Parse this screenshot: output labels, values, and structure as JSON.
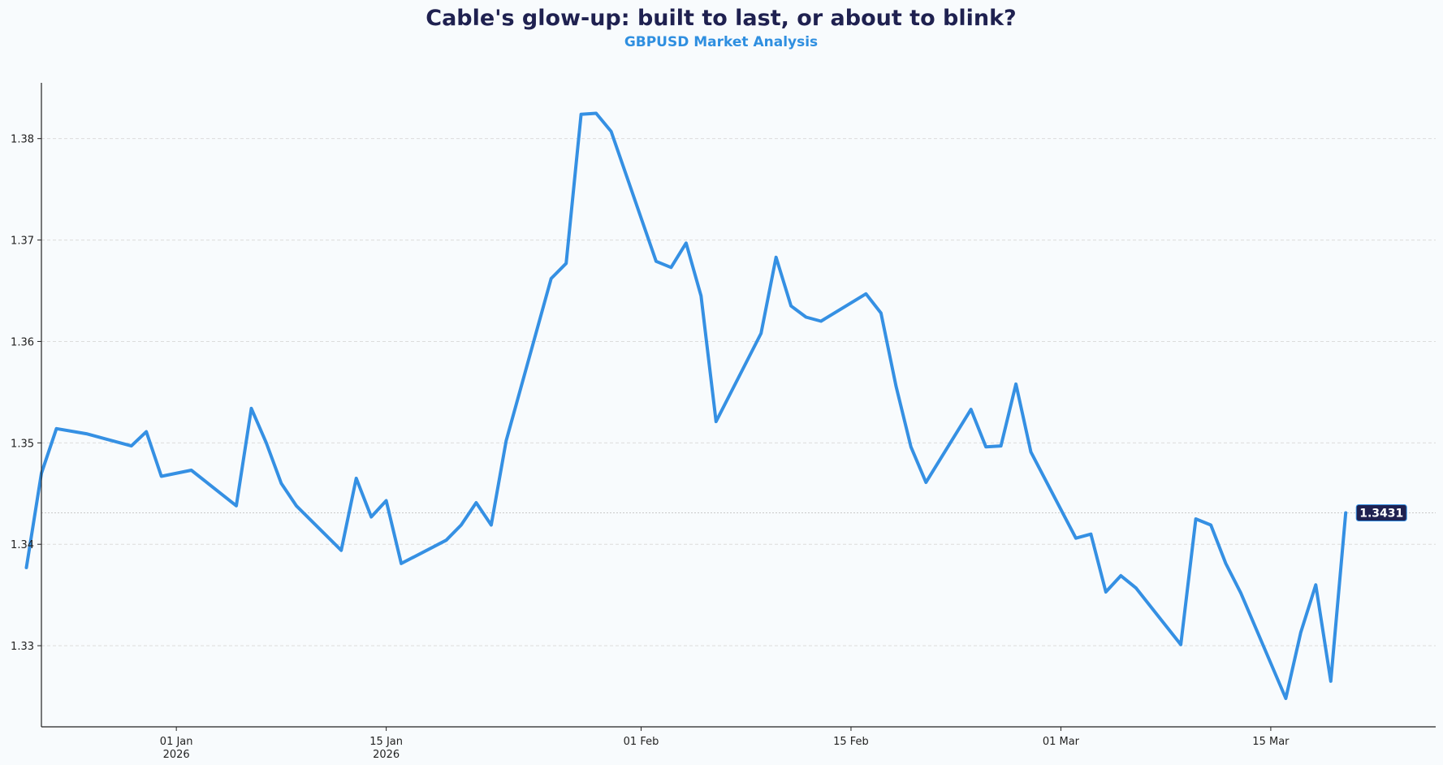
{
  "colors": {
    "background": "#f8fbfd",
    "title": "#1f2150",
    "subtitle": "#2f8fe0",
    "series": "#3590e3",
    "badge_bg": "#1f2150"
  },
  "chart_data": {
    "type": "line",
    "title": "Cable's glow-up: built to last, or about to blink?",
    "subtitle": "GBPUSD Market Analysis",
    "xlabel": "",
    "ylabel": "",
    "grid": "horizontal",
    "ylim": [
      1.322,
      1.3855
    ],
    "xlim": [
      "2025-12-23",
      "2026-03-26"
    ],
    "yticks": [
      1.33,
      1.34,
      1.35,
      1.36,
      1.37,
      1.38
    ],
    "ytick_labels": [
      "1.33",
      "1.34",
      "1.35",
      "1.36",
      "1.37",
      "1.38"
    ],
    "xticks": [
      {
        "date": "2026-01-01",
        "label": "01 Jan",
        "sublabel": "2026"
      },
      {
        "date": "2026-01-15",
        "label": "15 Jan",
        "sublabel": "2026"
      },
      {
        "date": "2026-02-01",
        "label": "01 Feb",
        "sublabel": ""
      },
      {
        "date": "2026-02-15",
        "label": "15 Feb",
        "sublabel": ""
      },
      {
        "date": "2026-03-01",
        "label": "01 Mar",
        "sublabel": ""
      },
      {
        "date": "2026-03-15",
        "label": "15 Mar",
        "sublabel": ""
      }
    ],
    "last_value_label": "1.3431",
    "series": [
      {
        "name": "",
        "x": [
          "2025-12-22",
          "2025-12-23",
          "2025-12-24",
          "2025-12-26",
          "2025-12-29",
          "2025-12-30",
          "2025-12-31",
          "2026-01-02",
          "2026-01-05",
          "2026-01-06",
          "2026-01-07",
          "2026-01-08",
          "2026-01-09",
          "2026-01-12",
          "2026-01-13",
          "2026-01-14",
          "2026-01-15",
          "2026-01-16",
          "2026-01-19",
          "2026-01-20",
          "2026-01-21",
          "2026-01-22",
          "2026-01-23",
          "2026-01-26",
          "2026-01-27",
          "2026-01-28",
          "2026-01-29",
          "2026-01-30",
          "2026-02-02",
          "2026-02-03",
          "2026-02-04",
          "2026-02-05",
          "2026-02-06",
          "2026-02-09",
          "2026-02-10",
          "2026-02-11",
          "2026-02-12",
          "2026-02-13",
          "2026-02-16",
          "2026-02-17",
          "2026-02-18",
          "2026-02-19",
          "2026-02-20",
          "2026-02-23",
          "2026-02-24",
          "2026-02-25",
          "2026-02-26",
          "2026-02-27",
          "2026-03-02",
          "2026-03-03",
          "2026-03-04",
          "2026-03-05",
          "2026-03-06",
          "2026-03-09",
          "2026-03-10",
          "2026-03-11",
          "2026-03-12",
          "2026-03-13",
          "2026-03-16",
          "2026-03-17",
          "2026-03-18",
          "2026-03-19",
          "2026-03-20"
        ],
        "values": [
          1.3377,
          1.347,
          1.3514,
          1.3509,
          1.3497,
          1.3511,
          1.3467,
          1.3473,
          1.3438,
          1.3534,
          1.35,
          1.346,
          1.3438,
          1.3394,
          1.3465,
          1.3427,
          1.3443,
          1.3381,
          1.3404,
          1.3419,
          1.3441,
          1.3419,
          1.3502,
          1.3662,
          1.3677,
          1.3824,
          1.3825,
          1.3807,
          1.3679,
          1.3673,
          1.3697,
          1.3645,
          1.3521,
          1.3608,
          1.3683,
          1.3635,
          1.3624,
          1.362,
          1.3647,
          1.3628,
          1.3556,
          1.3496,
          1.3461,
          1.3533,
          1.3496,
          1.3497,
          1.3558,
          1.3491,
          1.3406,
          1.341,
          1.3353,
          1.3369,
          1.3357,
          1.3301,
          1.3425,
          1.3419,
          1.3381,
          1.3352,
          1.3248,
          1.3313,
          1.336,
          1.3265,
          1.3431
        ]
      }
    ]
  }
}
